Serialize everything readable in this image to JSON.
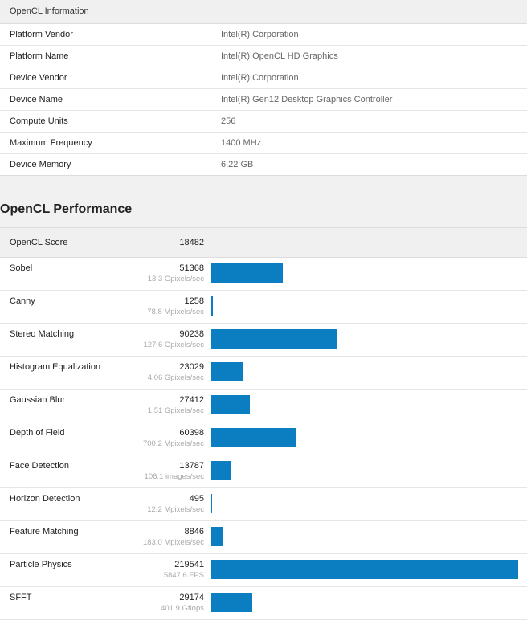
{
  "info": {
    "header": "OpenCL Information",
    "rows": [
      {
        "key": "Platform Vendor",
        "value": "Intel(R) Corporation"
      },
      {
        "key": "Platform Name",
        "value": "Intel(R) OpenCL HD Graphics"
      },
      {
        "key": "Device Vendor",
        "value": "Intel(R) Corporation"
      },
      {
        "key": "Device Name",
        "value": "Intel(R) Gen12 Desktop Graphics Controller"
      },
      {
        "key": "Compute Units",
        "value": "256"
      },
      {
        "key": "Maximum Frequency",
        "value": "1400 MHz"
      },
      {
        "key": "Device Memory",
        "value": "6.22 GB"
      }
    ]
  },
  "performance": {
    "title": "OpenCL Performance",
    "score_label": "OpenCL Score",
    "score_value": "18482",
    "max_score": 219541,
    "bar_color": "#0b7dc1",
    "tests": [
      {
        "name": "Sobel",
        "score": 51368,
        "rate": "13.3 Gpixels/sec"
      },
      {
        "name": "Canny",
        "score": 1258,
        "rate": "78.8 Mpixels/sec"
      },
      {
        "name": "Stereo Matching",
        "score": 90238,
        "rate": "127.6 Gpixels/sec"
      },
      {
        "name": "Histogram Equalization",
        "score": 23029,
        "rate": "4.06 Gpixels/sec"
      },
      {
        "name": "Gaussian Blur",
        "score": 27412,
        "rate": "1.51 Gpixels/sec"
      },
      {
        "name": "Depth of Field",
        "score": 60398,
        "rate": "700.2 Mpixels/sec"
      },
      {
        "name": "Face Detection",
        "score": 13787,
        "rate": "106.1 images/sec"
      },
      {
        "name": "Horizon Detection",
        "score": 495,
        "rate": "12.2 Mpixels/sec"
      },
      {
        "name": "Feature Matching",
        "score": 8846,
        "rate": "183.0 Mpixels/sec"
      },
      {
        "name": "Particle Physics",
        "score": 219541,
        "rate": "5847.6 FPS"
      },
      {
        "name": "SFFT",
        "score": 29174,
        "rate": "401.9 Gflops"
      }
    ]
  }
}
